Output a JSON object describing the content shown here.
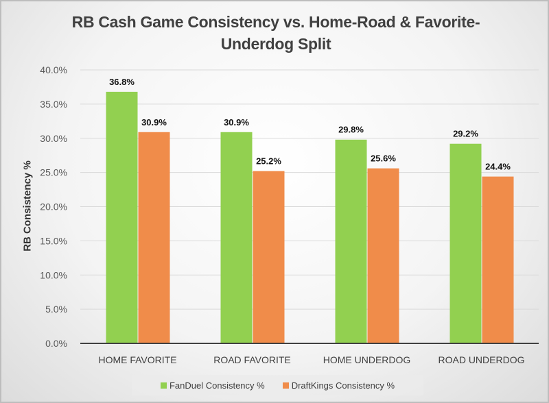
{
  "chart_data": {
    "type": "bar",
    "title": "RB Cash Game Consistency vs. Home-Road & Favorite-Underdog Split",
    "xlabel": "",
    "ylabel": "RB Consistency %",
    "ylim": [
      0,
      40
    ],
    "yticks": [
      "0.0%",
      "5.0%",
      "10.0%",
      "15.0%",
      "20.0%",
      "25.0%",
      "30.0%",
      "35.0%",
      "40.0%"
    ],
    "grid": true,
    "legend_position": "bottom",
    "categories": [
      "HOME FAVORITE",
      "ROAD FAVORITE",
      "HOME UNDERDOG",
      "ROAD UNDERDOG"
    ],
    "series": [
      {
        "name": "FanDuel Consistency %",
        "color": "#92d050",
        "values": [
          36.8,
          30.9,
          29.8,
          29.2
        ],
        "labels": [
          "36.8%",
          "30.9%",
          "29.8%",
          "29.2%"
        ]
      },
      {
        "name": "DraftKings Consistency %",
        "color": "#f08c4a",
        "values": [
          30.9,
          25.2,
          25.6,
          24.4
        ],
        "labels": [
          "30.9%",
          "25.2%",
          "25.6%",
          "24.4%"
        ]
      }
    ]
  }
}
